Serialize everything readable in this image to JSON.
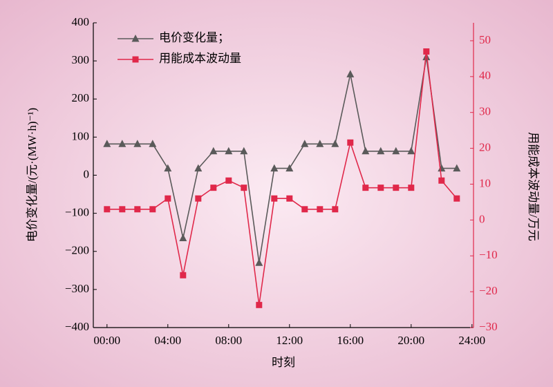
{
  "chart_data": {
    "type": "line",
    "xlabel": "时刻",
    "ylabel": "电价变化量/(元·(MW·h)⁻¹)",
    "y2label": "用能成本波动量/万元",
    "x": [
      0,
      1,
      2,
      3,
      4,
      5,
      6,
      7,
      8,
      9,
      10,
      11,
      12,
      13,
      14,
      15,
      16,
      17,
      18,
      19,
      20,
      21,
      22,
      23
    ],
    "xlim": [
      -0.9,
      24.1
    ],
    "xticks": [
      {
        "value": 0,
        "label": "00:00"
      },
      {
        "value": 4,
        "label": "04:00"
      },
      {
        "value": 8,
        "label": "08:00"
      },
      {
        "value": 12,
        "label": "12:00"
      },
      {
        "value": 16,
        "label": "16:00"
      },
      {
        "value": 20,
        "label": "20:00"
      },
      {
        "value": 24,
        "label": "24:00"
      }
    ],
    "ylim": [
      -400,
      400
    ],
    "yticks": [
      {
        "value": -400,
        "label": "−400"
      },
      {
        "value": -300,
        "label": "−300"
      },
      {
        "value": -200,
        "label": "−200"
      },
      {
        "value": -100,
        "label": "−100"
      },
      0,
      100,
      200,
      300,
      400
    ],
    "y2lim": [
      -30,
      55
    ],
    "y2ticks": [
      {
        "value": -30,
        "label": "−30"
      },
      {
        "value": -20,
        "label": "−20"
      },
      {
        "value": -10,
        "label": "−10"
      },
      0,
      10,
      20,
      30,
      40,
      50
    ],
    "legend": "upper left",
    "series": [
      {
        "name": "电价变化量；",
        "color": "#5a5a5a",
        "marker": "triangle",
        "values": [
          82,
          82,
          82,
          82,
          18,
          -165,
          18,
          63,
          63,
          63,
          -230,
          18,
          18,
          82,
          82,
          82,
          265,
          63,
          63,
          63,
          63,
          310,
          18,
          18
        ]
      },
      {
        "name": "用能成本波动量",
        "color": "#e0284a",
        "marker": "square",
        "axis": "y2",
        "values": [
          3,
          3,
          3,
          3,
          6,
          -15.4,
          6,
          9,
          11,
          9,
          -23.7,
          6,
          6,
          3,
          3,
          3,
          21.6,
          9,
          9,
          9,
          9,
          47,
          11,
          6
        ]
      }
    ]
  }
}
